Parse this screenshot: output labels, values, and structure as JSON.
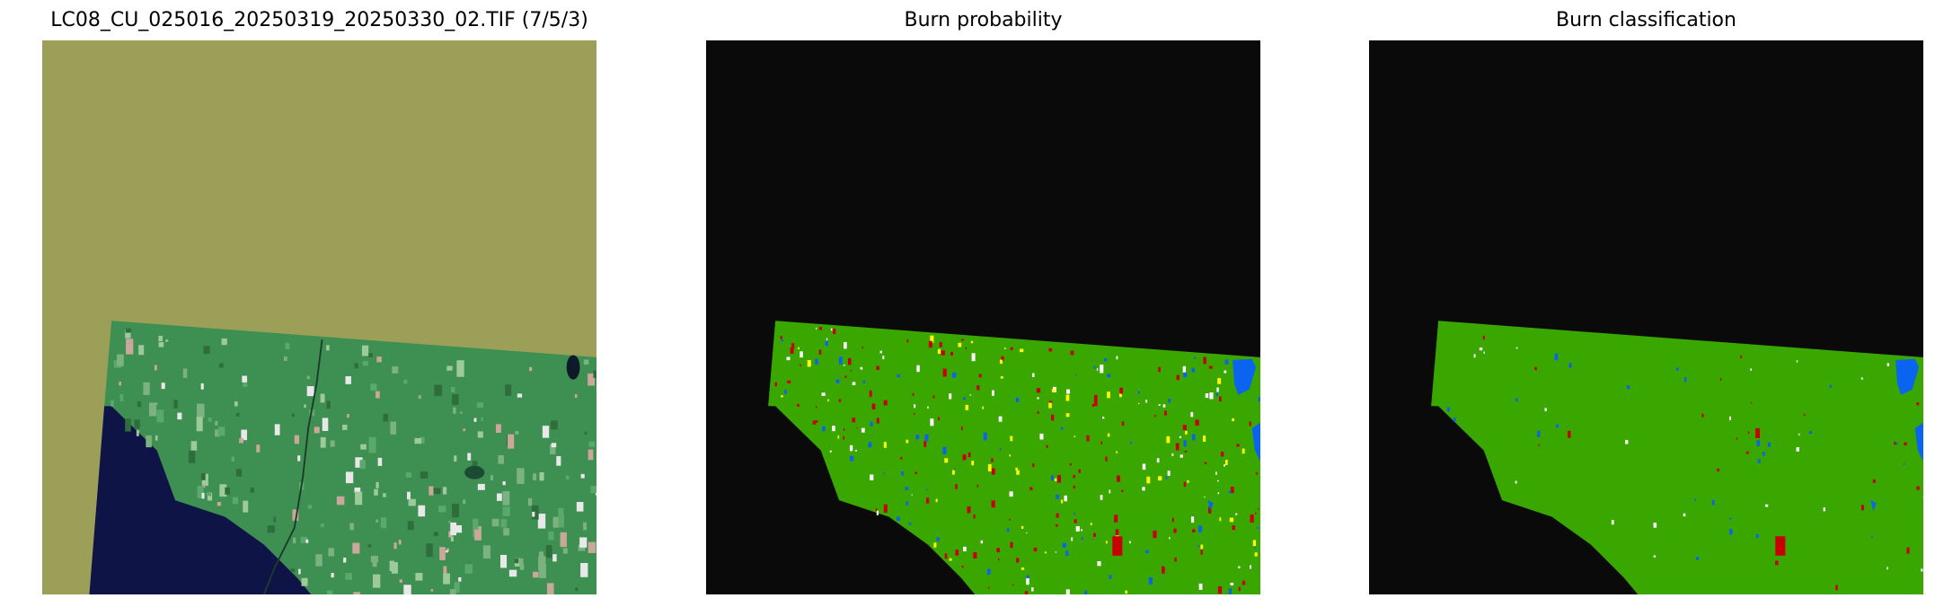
{
  "figure": {
    "panels": [
      {
        "title": "LC08_CU_025016_20250319_20250330_02.TIF (7/5/3)",
        "kind": "false-color-composite",
        "nodata_color": "#9c9f58",
        "water_color": "#0e1446",
        "land_color": "#3e8f52"
      },
      {
        "title": "Burn probability",
        "kind": "probability-map",
        "nodata_color": "#0a0a0a",
        "land_color": "#3aa600",
        "water_color": "#0a64f0",
        "high_color": "#c80000",
        "mid_color": "#ffff00"
      },
      {
        "title": "Burn classification",
        "kind": "classification-map",
        "nodata_color": "#0a0a0a",
        "land_color": "#3aa600",
        "water_color": "#0a64f0",
        "burn_color": "#c80000"
      }
    ]
  }
}
